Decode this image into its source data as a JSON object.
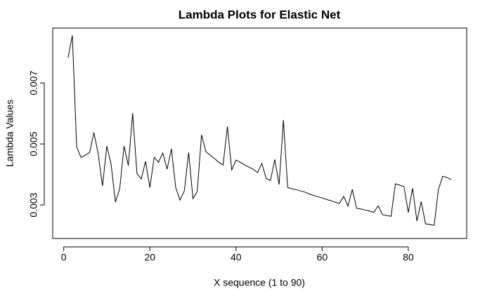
{
  "chart_data": {
    "type": "line",
    "title": "Lambda Plots for Elastic Net",
    "x_label": "X sequence (1 to 90)",
    "y_label": "Lambda Values",
    "x": [
      1,
      2,
      3,
      4,
      5,
      6,
      7,
      8,
      9,
      10,
      11,
      12,
      13,
      14,
      15,
      16,
      17,
      18,
      19,
      20,
      21,
      22,
      23,
      24,
      25,
      26,
      27,
      28,
      29,
      30,
      31,
      32,
      33,
      34,
      35,
      36,
      37,
      38,
      39,
      40,
      41,
      42,
      43,
      44,
      45,
      46,
      47,
      48,
      49,
      50,
      51,
      52,
      53,
      54,
      55,
      56,
      57,
      58,
      59,
      60,
      61,
      62,
      63,
      64,
      65,
      66,
      67,
      68,
      69,
      70,
      71,
      72,
      73,
      74,
      75,
      76,
      77,
      78,
      79,
      80,
      81,
      82,
      83,
      84,
      85,
      86,
      87,
      88,
      89,
      90
    ],
    "series": [
      {
        "name": "lambda",
        "color": "#000000",
        "values": [
          0.00783,
          0.00856,
          0.00491,
          0.00456,
          0.00463,
          0.00472,
          0.00537,
          0.00468,
          0.00362,
          0.00493,
          0.00433,
          0.00309,
          0.00353,
          0.00493,
          0.00429,
          0.00601,
          0.00403,
          0.00385,
          0.00443,
          0.00357,
          0.00456,
          0.0044,
          0.0047,
          0.00417,
          0.00484,
          0.00357,
          0.00316,
          0.00346,
          0.00472,
          0.00321,
          0.00344,
          0.0053,
          0.00475,
          0.00463,
          0.00452,
          0.0044,
          0.00431,
          0.00557,
          0.00415,
          0.00447,
          0.0044,
          0.00431,
          0.00424,
          0.00417,
          0.00406,
          0.00436,
          0.00387,
          0.0038,
          0.00449,
          0.00367,
          0.00578,
          0.00357,
          0.00353,
          0.0035,
          0.00346,
          0.00342,
          0.00336,
          0.00331,
          0.00327,
          0.00323,
          0.00318,
          0.00314,
          0.00309,
          0.00305,
          0.00328,
          0.00296,
          0.00351,
          0.00289,
          0.00287,
          0.00283,
          0.0028,
          0.00276,
          0.00297,
          0.00268,
          0.00265,
          0.00263,
          0.00369,
          0.00365,
          0.0036,
          0.00275,
          0.00355,
          0.00247,
          0.00311,
          0.00238,
          0.00236,
          0.00233,
          0.00351,
          0.00394,
          0.0039,
          0.00383
        ]
      }
    ],
    "xlim": [
      -2.56,
      93.56
    ],
    "ylim": [
      0.0019,
      0.0088
    ],
    "xticks": [
      0,
      20,
      40,
      60,
      80
    ],
    "yticks": [
      0.003,
      0.005,
      0.007
    ]
  }
}
